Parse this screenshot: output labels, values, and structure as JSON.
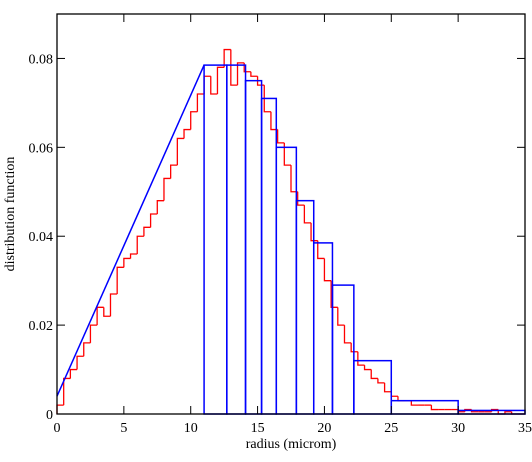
{
  "chart_data": {
    "type": "histogram",
    "xlabel": "radius (microm)",
    "ylabel": "distribution function",
    "xlim": [
      0,
      35
    ],
    "ylim": [
      0,
      0.09
    ],
    "xticks": [
      0,
      5,
      10,
      15,
      20,
      25,
      30,
      35
    ],
    "yticks": [
      0,
      0.02,
      0.04,
      0.06,
      0.08
    ],
    "series": [
      {
        "type": "step",
        "color": "#ff0000",
        "bins": [
          0,
          0.5,
          1,
          1.5,
          2,
          2.5,
          3,
          3.5,
          4,
          4.5,
          5,
          5.5,
          6,
          6.5,
          7,
          7.5,
          8,
          8.5,
          9,
          9.5,
          10,
          10.5,
          11,
          11.5,
          12,
          12.5,
          13,
          13.5,
          14,
          14.5,
          15,
          15.5,
          16,
          16.5,
          17,
          17.5,
          18,
          18.5,
          19,
          19.5,
          20,
          20.5,
          21,
          21.5,
          22,
          22.5,
          23,
          23.5,
          24,
          24.5,
          25,
          25.5,
          26,
          26.5,
          27,
          27.5,
          28,
          28.5,
          29,
          29.5,
          30,
          30.5,
          31,
          31.5,
          32,
          32.5,
          33,
          33.5,
          34,
          34.5,
          35
        ],
        "counts": [
          0.002,
          0.008,
          0.01,
          0.013,
          0.016,
          0.02,
          0.024,
          0.022,
          0.027,
          0.033,
          0.035,
          0.036,
          0.04,
          0.042,
          0.045,
          0.048,
          0.053,
          0.056,
          0.062,
          0.064,
          0.068,
          0.072,
          0.076,
          0.072,
          0.078,
          0.082,
          0.074,
          0.079,
          0.077,
          0.076,
          0.074,
          0.068,
          0.064,
          0.061,
          0.056,
          0.05,
          0.047,
          0.043,
          0.039,
          0.035,
          0.03,
          0.024,
          0.02,
          0.016,
          0.014,
          0.011,
          0.01,
          0.008,
          0.007,
          0.005,
          0.004,
          0.003,
          0.003,
          0.002,
          0.002,
          0.002,
          0.001,
          0.001,
          0.001,
          0.001,
          0.0005,
          0.001,
          0.0005,
          0.0005,
          0.0005,
          0.001,
          0,
          0.0005,
          0,
          0
        ]
      },
      {
        "type": "line",
        "color": "#0000ff",
        "x": [
          0,
          11
        ],
        "values": [
          0.004,
          0.0785
        ]
      },
      {
        "type": "bars",
        "color": "#0000ff",
        "bins": [
          11,
          12.7,
          14.1,
          15.3,
          16.4,
          17.9,
          19.2,
          20.6,
          22.2,
          25,
          30,
          35
        ],
        "counts": [
          0.0785,
          0.0785,
          0.075,
          0.071,
          0.06,
          0.048,
          0.0385,
          0.029,
          0.012,
          0.003,
          0.0008
        ]
      }
    ]
  }
}
